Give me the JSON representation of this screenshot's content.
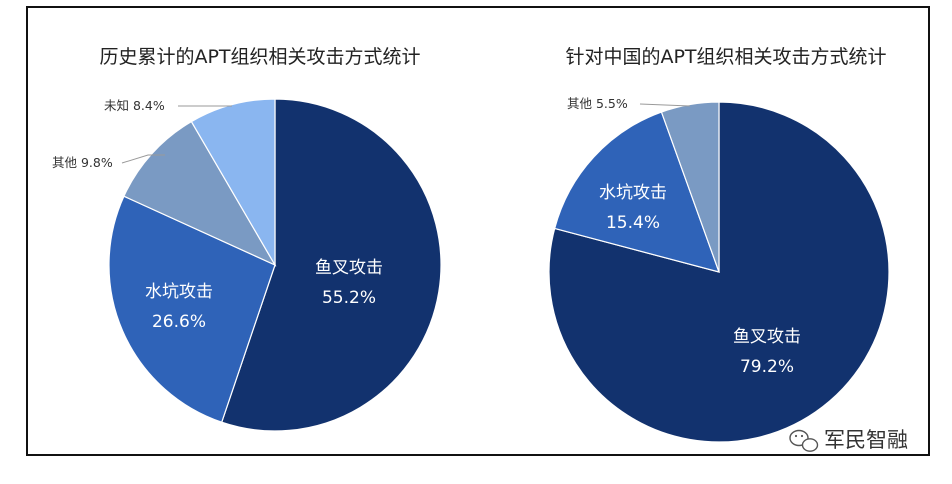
{
  "chart_data": [
    {
      "type": "pie",
      "title": "历史累计的APT组织相关攻击方式统计",
      "slices": [
        {
          "label": "鱼叉攻击",
          "value": 55.2,
          "display": "55.2%",
          "color": "#12326e"
        },
        {
          "label": "水坑攻击",
          "value": 26.6,
          "display": "26.6%",
          "color": "#2f63b8"
        },
        {
          "label": "其他",
          "value": 9.8,
          "display": "9.8%",
          "color": "#7a9ac3"
        },
        {
          "label": "未知",
          "value": 8.4,
          "display": "8.4%",
          "color": "#8ab6f0"
        }
      ]
    },
    {
      "type": "pie",
      "title": "针对中国的APT组织相关攻击方式统计",
      "slices": [
        {
          "label": "鱼叉攻击",
          "value": 79.2,
          "display": "79.2%",
          "color": "#12326e"
        },
        {
          "label": "水坑攻击",
          "value": 15.4,
          "display": "15.4%",
          "color": "#2f63b8"
        },
        {
          "label": "其他",
          "value": 5.5,
          "display": "5.5%",
          "color": "#7a9ac3"
        }
      ]
    }
  ],
  "watermark": {
    "text": "军民智融",
    "icon": "wechat-icon"
  }
}
